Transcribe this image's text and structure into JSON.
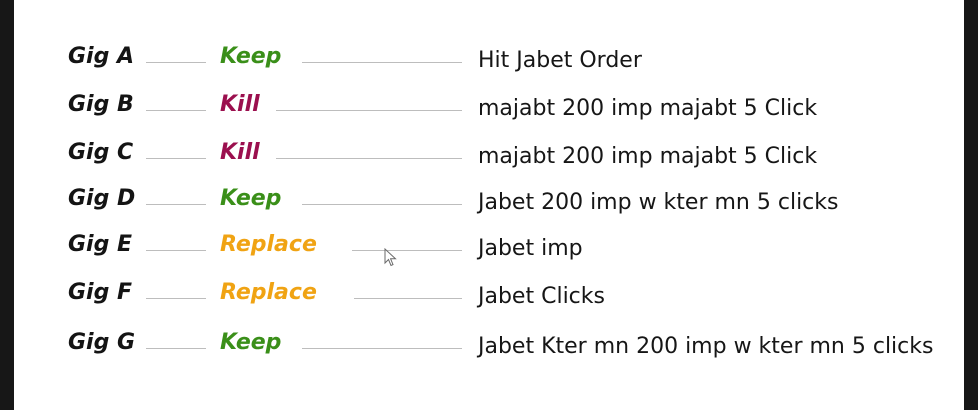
{
  "colors": {
    "keep": "#3a8f19",
    "kill": "#9b0f4e",
    "replace": "#f0a313"
  },
  "rows": [
    {
      "gig": "Gig A",
      "action": "Keep",
      "action_type": "keep",
      "desc": "Hit Jabet Order"
    },
    {
      "gig": "Gig B",
      "action": "Kill",
      "action_type": "kill",
      "desc": "majabt 200 imp majabt 5 Click"
    },
    {
      "gig": "Gig C",
      "action": "Kill",
      "action_type": "kill",
      "desc": "majabt 200 imp majabt 5 Click"
    },
    {
      "gig": "Gig D",
      "action": "Keep",
      "action_type": "keep",
      "desc": "Jabet 200 imp w kter mn 5 clicks"
    },
    {
      "gig": "Gig E",
      "action": "Replace",
      "action_type": "replace",
      "desc": "Jabet imp"
    },
    {
      "gig": "Gig F",
      "action": "Replace",
      "action_type": "replace",
      "desc": "Jabet Clicks"
    },
    {
      "gig": "Gig G",
      "action": "Keep",
      "action_type": "keep",
      "desc": "Jabet Kter mn 200 imp w kter mn 5 clicks"
    }
  ],
  "cursor_icon": "mouse-pointer-icon"
}
